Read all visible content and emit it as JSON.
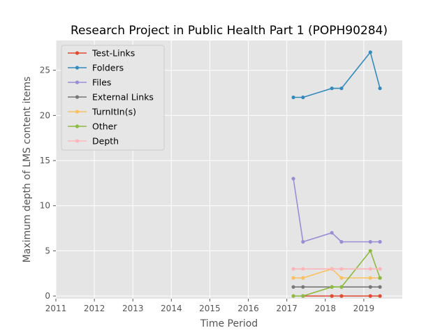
{
  "chart_data": {
    "type": "line",
    "title": "Research Project in Public Health Part 1 (POPH90284)",
    "xlabel": "Time Period",
    "ylabel": "Maximum depth of LMS content items",
    "xlim": [
      2011,
      2020
    ],
    "ylim": [
      -0.3,
      28.3
    ],
    "xticks": [
      "2011",
      "2012",
      "2013",
      "2014",
      "2015",
      "2016",
      "2017",
      "2018",
      "2019"
    ],
    "yticks": [
      "0",
      "5",
      "10",
      "15",
      "20",
      "25"
    ],
    "grid": true,
    "legend_position": "top-left",
    "x": [
      2017.17,
      2017.42,
      2018.17,
      2018.42,
      2019.17,
      2019.42
    ],
    "series": [
      {
        "name": "Test-Links",
        "color": "#e24a33",
        "values": [
          null,
          0,
          0,
          0,
          0,
          0
        ]
      },
      {
        "name": "Folders",
        "color": "#348abd",
        "values": [
          22,
          22,
          23,
          23,
          27,
          23
        ]
      },
      {
        "name": "Files",
        "color": "#988ed5",
        "values": [
          13,
          6,
          7,
          6,
          6,
          6
        ]
      },
      {
        "name": "External Links",
        "color": "#777777",
        "values": [
          1,
          1,
          1,
          1,
          1,
          1
        ]
      },
      {
        "name": "TurnItIn(s)",
        "color": "#fbc15e",
        "values": [
          2,
          2,
          3,
          2,
          2,
          2
        ]
      },
      {
        "name": "Other",
        "color": "#8eba42",
        "values": [
          0,
          0,
          1,
          1,
          5,
          2
        ]
      },
      {
        "name": "Depth",
        "color": "#ffb5b8",
        "values": [
          3,
          3,
          3,
          3,
          3,
          3
        ]
      }
    ]
  }
}
